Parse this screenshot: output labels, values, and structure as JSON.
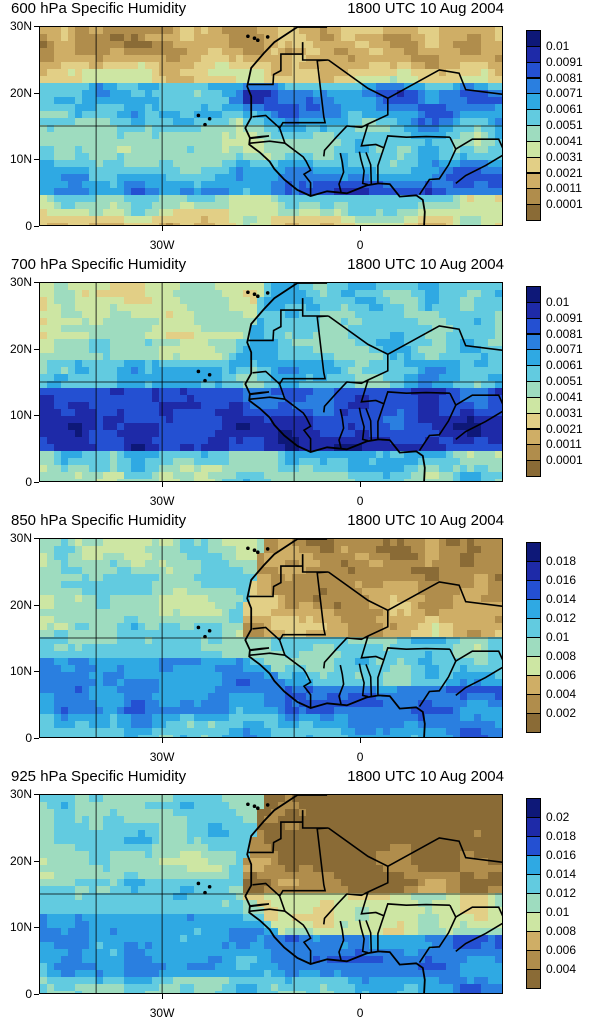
{
  "colors": {
    "palette_low_to_high": [
      "#8a6b36",
      "#b08d4c",
      "#cfae66",
      "#e2cf86",
      "#cde6a3",
      "#9edcbf",
      "#62cbe0",
      "#2fa9e3",
      "#2a7fe0",
      "#2450d2",
      "#1e2aa8",
      "#0e1878"
    ],
    "border": "#000000",
    "gridline": "#000000"
  },
  "panels": [
    {
      "id": "600",
      "title_left": "600 hPa Specific Humidity",
      "title_right": "1800 UTC 10 Aug 2004",
      "lat_labels": [
        "30N",
        "20N",
        "10N",
        "0"
      ],
      "lon_labels": [
        "30W",
        "0"
      ],
      "colorbar_labels": [
        "0.01",
        "0.0091",
        "0.0081",
        "0.0071",
        "0.0061",
        "0.0051",
        "0.0041",
        "0.0031",
        "0.0021",
        "0.0011",
        "0.0001"
      ],
      "pattern": "mid"
    },
    {
      "id": "700",
      "title_left": "700 hPa Specific Humidity",
      "title_right": "1800 UTC 10 Aug 2004",
      "lat_labels": [
        "30N",
        "20N",
        "10N",
        "0"
      ],
      "lon_labels": [
        "30W",
        "0"
      ],
      "colorbar_labels": [
        "0.01",
        "0.0091",
        "0.0081",
        "0.0071",
        "0.0061",
        "0.0051",
        "0.0041",
        "0.0031",
        "0.0021",
        "0.0011",
        "0.0001"
      ],
      "pattern": "wet"
    },
    {
      "id": "850",
      "title_left": "850 hPa Specific Humidity",
      "title_right": "1800 UTC 10 Aug 2004",
      "lat_labels": [
        "30N",
        "20N",
        "10N",
        "0"
      ],
      "lon_labels": [
        "30W",
        "0"
      ],
      "colorbar_labels": [
        "0.018",
        "0.016",
        "0.014",
        "0.012",
        "0.01",
        "0.008",
        "0.006",
        "0.004",
        "0.002"
      ],
      "pattern": "low"
    },
    {
      "id": "925",
      "title_left": "925 hPa Specific Humidity",
      "title_right": "1800 UTC 10 Aug 2004",
      "lat_labels": [
        "30N",
        "20N",
        "10N",
        "0"
      ],
      "lon_labels": [
        "30W",
        "0"
      ],
      "colorbar_labels": [
        "0.02",
        "0.018",
        "0.016",
        "0.014",
        "0.012",
        "0.01",
        "0.008",
        "0.006",
        "0.004"
      ],
      "pattern": "sfc"
    }
  ]
}
